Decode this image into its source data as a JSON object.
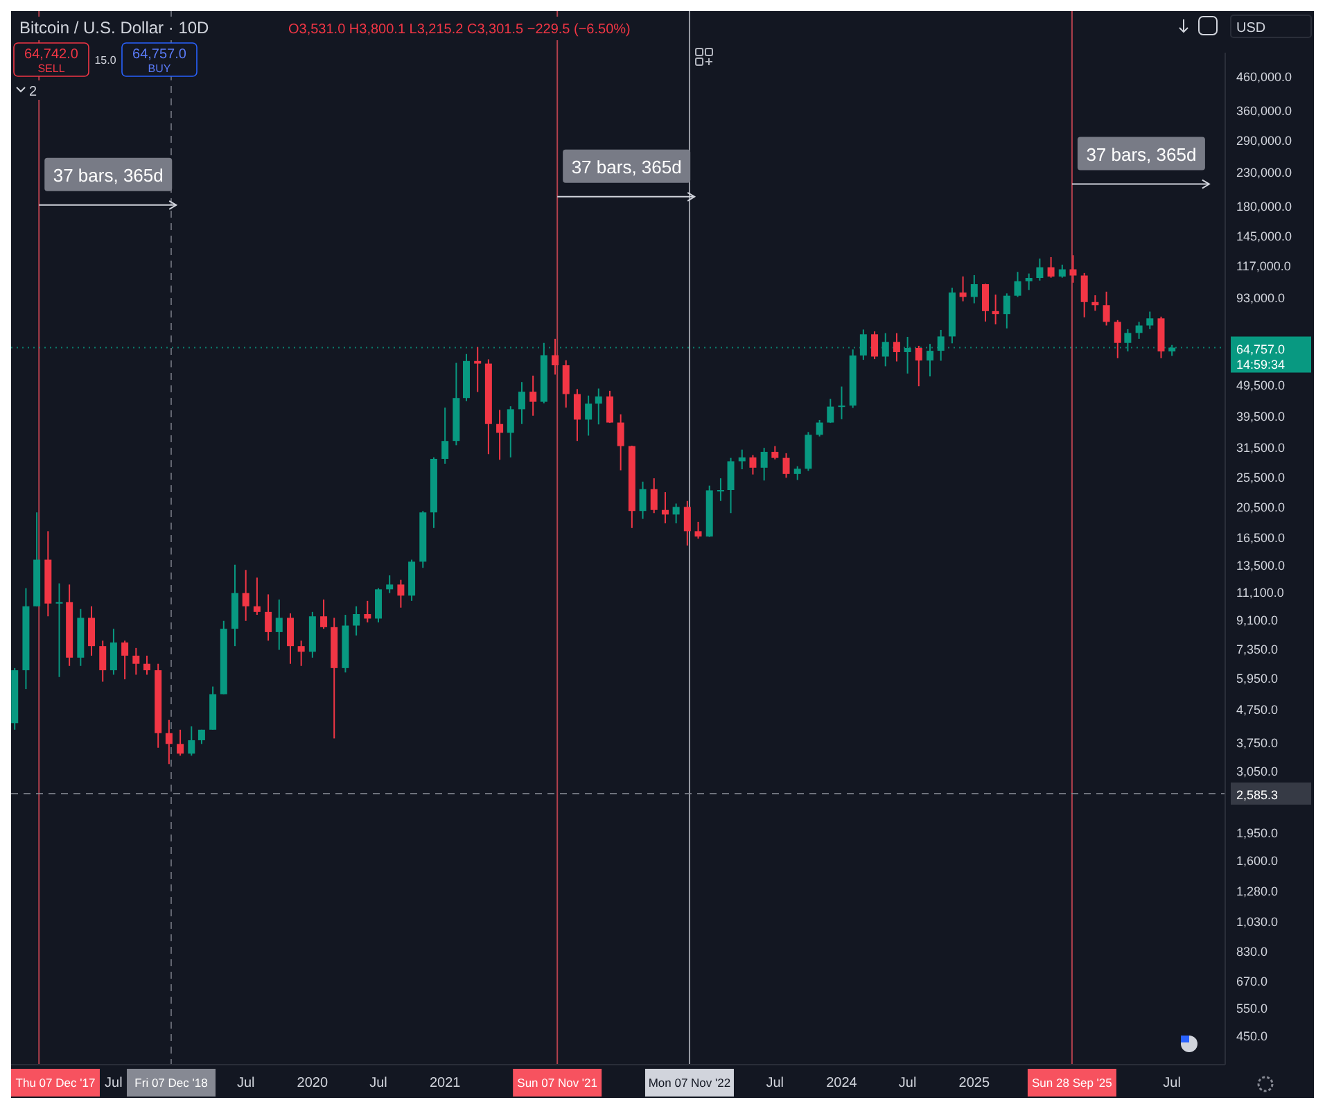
{
  "chart_data": {
    "type": "candlestick",
    "title": "Bitcoin / U.S. Dollar · 10D",
    "subtitle": "O3,531.0 H3,800.1 L3,215.2 C3,301.5 −229.5 (−6.50%)",
    "x": [
      "2017-10",
      "2017-11",
      "2017-12",
      "2018-01",
      "2018-02",
      "2018-03",
      "2018-04",
      "2018-05",
      "2018-06",
      "2018-07",
      "2018-08",
      "2018-09",
      "2018-10",
      "2018-11",
      "2018-12",
      "2019-01",
      "2019-02",
      "2019-03",
      "2019-04",
      "2019-05",
      "2019-06",
      "2019-07",
      "2019-08",
      "2019-09",
      "2019-10",
      "2019-11",
      "2019-12",
      "2020-01",
      "2020-02",
      "2020-03",
      "2020-04",
      "2020-05",
      "2020-06",
      "2020-07",
      "2020-08",
      "2020-09",
      "2020-10",
      "2020-11",
      "2020-12",
      "2021-01",
      "2021-02",
      "2021-03",
      "2021-04",
      "2021-05",
      "2021-06",
      "2021-07",
      "2021-08",
      "2021-09",
      "2021-10",
      "2021-11",
      "2021-12",
      "2022-01",
      "2022-02",
      "2022-03",
      "2022-04",
      "2022-05",
      "2022-06",
      "2022-07",
      "2022-08",
      "2022-09",
      "2022-10",
      "2022-11",
      "2022-12",
      "2023-01",
      "2023-02",
      "2023-03",
      "2023-04",
      "2023-05",
      "2023-06",
      "2023-07",
      "2023-08",
      "2023-09",
      "2023-10",
      "2023-11",
      "2023-12",
      "2024-01",
      "2024-02",
      "2024-03",
      "2024-04",
      "2024-05",
      "2024-06",
      "2024-07",
      "2024-08",
      "2024-09",
      "2024-10",
      "2024-11",
      "2024-12",
      "2025-01",
      "2025-02",
      "2025-03",
      "2025-04",
      "2025-05",
      "2025-06",
      "2025-07",
      "2025-08",
      "2025-09",
      "2025-10",
      "2025-11",
      "2025-12",
      "2026-01",
      "2026-02",
      "2026-03",
      "2026-04",
      "2026-05",
      "2026-06",
      "2026-07"
    ],
    "ohlc": [
      [
        4300,
        6400,
        4100,
        6300
      ],
      [
        6300,
        11400,
        5500,
        10000
      ],
      [
        10000,
        19700,
        10000,
        14000
      ],
      [
        14000,
        17200,
        9300,
        10200
      ],
      [
        10200,
        11800,
        6000,
        10300
      ],
      [
        10300,
        11700,
        6500,
        6900
      ],
      [
        6900,
        9800,
        6500,
        9200
      ],
      [
        9200,
        10000,
        7000,
        7500
      ],
      [
        7500,
        7800,
        5800,
        6300
      ],
      [
        6300,
        8500,
        6100,
        7700
      ],
      [
        7700,
        7800,
        5900,
        7000
      ],
      [
        7000,
        7400,
        6100,
        6600
      ],
      [
        6600,
        7000,
        6100,
        6300
      ],
      [
        6300,
        6600,
        3600,
        4000
      ],
      [
        4000,
        4400,
        3200,
        3700
      ],
      [
        3700,
        4100,
        3400,
        3450
      ],
      [
        3450,
        4200,
        3400,
        3800
      ],
      [
        3800,
        4100,
        3700,
        4100
      ],
      [
        4100,
        5600,
        4100,
        5300
      ],
      [
        5300,
        9000,
        5300,
        8500
      ],
      [
        8500,
        13500,
        7500,
        11000
      ],
      [
        11000,
        13000,
        9000,
        10000
      ],
      [
        10000,
        12300,
        9400,
        9600
      ],
      [
        9600,
        10900,
        7800,
        8300
      ],
      [
        8300,
        10500,
        7300,
        9200
      ],
      [
        9200,
        9500,
        6600,
        7500
      ],
      [
        7500,
        7800,
        6500,
        7200
      ],
      [
        7200,
        9600,
        6900,
        9300
      ],
      [
        9300,
        10500,
        8500,
        8600
      ],
      [
        8600,
        9200,
        3850,
        6400
      ],
      [
        6400,
        9400,
        6200,
        8700
      ],
      [
        8700,
        10000,
        8100,
        9450
      ],
      [
        9450,
        10400,
        8900,
        9150
      ],
      [
        9150,
        11400,
        8900,
        11300
      ],
      [
        11300,
        12500,
        11000,
        11700
      ],
      [
        11700,
        12100,
        9900,
        10800
      ],
      [
        10800,
        14000,
        10400,
        13800
      ],
      [
        13800,
        19900,
        13200,
        19700
      ],
      [
        19700,
        29300,
        17600,
        29000
      ],
      [
        29000,
        42000,
        28000,
        33000
      ],
      [
        33000,
        58000,
        32000,
        45000
      ],
      [
        45000,
        61800,
        44000,
        58800
      ],
      [
        58800,
        65000,
        47000,
        57700
      ],
      [
        57700,
        59500,
        30000,
        37300
      ],
      [
        37300,
        41300,
        28800,
        35000
      ],
      [
        35000,
        42400,
        29300,
        41500
      ],
      [
        41500,
        50500,
        37300,
        47100
      ],
      [
        47100,
        52900,
        39600,
        43800
      ],
      [
        43800,
        67000,
        43300,
        61300
      ],
      [
        61300,
        69000,
        53300,
        57000
      ],
      [
        57000,
        59100,
        42000,
        46300
      ],
      [
        46300,
        48000,
        33000,
        38500
      ],
      [
        38500,
        45800,
        34300,
        43200
      ],
      [
        43200,
        48200,
        37200,
        45500
      ],
      [
        45500,
        47400,
        37600,
        37700
      ],
      [
        37700,
        40000,
        26700,
        31800
      ],
      [
        31800,
        31900,
        17600,
        19900
      ],
      [
        19900,
        24600,
        18800,
        23300
      ],
      [
        23300,
        25200,
        19600,
        20050
      ],
      [
        20050,
        22800,
        18200,
        19400
      ],
      [
        19400,
        21000,
        18200,
        20500
      ],
      [
        20500,
        21400,
        15500,
        17200
      ],
      [
        17200,
        18400,
        16300,
        16550
      ],
      [
        16550,
        23900,
        16500,
        23100
      ],
      [
        23100,
        25200,
        21400,
        23150
      ],
      [
        23150,
        29200,
        19600,
        28500
      ],
      [
        28500,
        31000,
        26900,
        29300
      ],
      [
        29300,
        29800,
        25900,
        27200
      ],
      [
        27200,
        31400,
        24800,
        30500
      ],
      [
        30500,
        31800,
        28900,
        29200
      ],
      [
        29200,
        30200,
        25300,
        26000
      ],
      [
        26000,
        27500,
        24900,
        27000
      ],
      [
        27000,
        35200,
        26600,
        34500
      ],
      [
        34500,
        38400,
        34100,
        37700
      ],
      [
        37700,
        44700,
        37600,
        42300
      ],
      [
        42300,
        48900,
        38600,
        42600
      ],
      [
        42600,
        63900,
        41900,
        61200
      ],
      [
        61200,
        73800,
        59300,
        71300
      ],
      [
        71300,
        72800,
        59600,
        60700
      ],
      [
        60700,
        71900,
        56600,
        67500
      ],
      [
        67500,
        71900,
        58600,
        62700
      ],
      [
        62700,
        70000,
        53700,
        64600
      ],
      [
        64600,
        65600,
        49000,
        59000
      ],
      [
        59000,
        66500,
        52600,
        63300
      ],
      [
        63300,
        73600,
        58900,
        70200
      ],
      [
        70200,
        99800,
        66800,
        96400
      ],
      [
        96400,
        108300,
        90500,
        93400
      ],
      [
        93400,
        109300,
        89200,
        102400
      ],
      [
        102400,
        102700,
        78200,
        84300
      ],
      [
        84300,
        95000,
        76600,
        82500
      ],
      [
        82500,
        95800,
        74400,
        94200
      ],
      [
        94200,
        111900,
        93400,
        104600
      ],
      [
        104600,
        110600,
        98200,
        107100
      ],
      [
        107100,
        123200,
        105100,
        115700
      ],
      [
        115700,
        124500,
        107300,
        108200
      ],
      [
        108200,
        117900,
        107300,
        114000
      ],
      [
        114000,
        126200,
        103500,
        109000
      ],
      [
        109000,
        111000,
        80600,
        90000
      ],
      [
        90000,
        94500,
        84500,
        88000
      ],
      [
        88000,
        97000,
        76000,
        78000
      ],
      [
        78000,
        79000,
        60000,
        67000
      ],
      [
        67000,
        74000,
        63000,
        72000
      ],
      [
        72000,
        78000,
        69000,
        76000
      ],
      [
        76000,
        84000,
        74000,
        80000
      ],
      [
        80000,
        81000,
        60000,
        63000
      ],
      [
        63000,
        66000,
        61000,
        64757
      ]
    ],
    "log": "y",
    "grid": false,
    "xlim": [
      "2017-09-21",
      "2026-11-25"
    ],
    "xticks": [
      {
        "value": "2018-07",
        "label": "Jul"
      },
      {
        "value": "2019-07",
        "label": "Jul"
      },
      {
        "value": "2020",
        "label": "2020"
      },
      {
        "value": "2020-07",
        "label": "Jul"
      },
      {
        "value": "2021",
        "label": "2021"
      },
      {
        "value": "2023-07",
        "label": "Jul"
      },
      {
        "value": "2024",
        "label": "2024"
      },
      {
        "value": "2024-07",
        "label": "Jul"
      },
      {
        "value": "2025",
        "label": "2025"
      },
      {
        "value": "2026-07",
        "label": "Jul"
      }
    ],
    "ylim": [
      365,
      545000
    ],
    "yticks": [
      {
        "value": 460000,
        "label": "460,000.0"
      },
      {
        "value": 360000,
        "label": "360,000.0"
      },
      {
        "value": 290000,
        "label": "290,000.0"
      },
      {
        "value": 230000,
        "label": "230,000.0"
      },
      {
        "value": 180000,
        "label": "180,000.0"
      },
      {
        "value": 145000,
        "label": "145,000.0"
      },
      {
        "value": 117000,
        "label": "117,000.0"
      },
      {
        "value": 93000,
        "label": "93,000.0"
      },
      {
        "value": 49500,
        "label": "49,500.0"
      },
      {
        "value": 39500,
        "label": "39,500.0"
      },
      {
        "value": 31500,
        "label": "31,500.0"
      },
      {
        "value": 25500,
        "label": "25,500.0"
      },
      {
        "value": 20500,
        "label": "20,500.0"
      },
      {
        "value": 16500,
        "label": "16,500.0"
      },
      {
        "value": 13500,
        "label": "13,500.0"
      },
      {
        "value": 11100,
        "label": "11,100.0"
      },
      {
        "value": 9100,
        "label": "9,100.0"
      },
      {
        "value": 7350,
        "label": "7,350.0"
      },
      {
        "value": 5950,
        "label": "5,950.0"
      },
      {
        "value": 4750,
        "label": "4,750.0"
      },
      {
        "value": 3750,
        "label": "3,750.0"
      },
      {
        "value": 3050,
        "label": "3,050.0"
      },
      {
        "value": 1950,
        "label": "1,950.0"
      },
      {
        "value": 1600,
        "label": "1,600.0"
      },
      {
        "value": 1280,
        "label": "1,280.0"
      },
      {
        "value": 1030,
        "label": "1,030.0"
      },
      {
        "value": 830,
        "label": "830.0"
      },
      {
        "value": 670,
        "label": "670.0"
      },
      {
        "value": 550,
        "label": "550.0"
      },
      {
        "value": 450,
        "label": "450.0"
      }
    ],
    "ref_lines": [
      {
        "axis": "x",
        "value": "2017-12-07",
        "label": "Thu 07 Dec '17",
        "color": "#f7525f",
        "line_style": "solid"
      },
      {
        "axis": "x",
        "value": "2018-12-07",
        "label": "Fri 07 Dec '18",
        "color": "#868993",
        "line_style": "dashed"
      },
      {
        "axis": "x",
        "value": "2021-11-07",
        "label": "Sun 07 Nov '21",
        "color": "#f7525f",
        "line_style": "solid"
      },
      {
        "axis": "x",
        "value": "2022-11-07",
        "label": "Mon 07 Nov '22",
        "color": "#d1d4dc",
        "line_style": "solid"
      },
      {
        "axis": "x",
        "value": "2025-09-28",
        "label": "Sun 28 Sep '25",
        "color": "#f7525f",
        "line_style": "solid"
      },
      {
        "axis": "y",
        "value": 64757,
        "label": "64,757.0",
        "color": "#089981",
        "line_style": "dotted"
      },
      {
        "axis": "y",
        "value": 2585.3,
        "label": "2,585.3",
        "color": "#868993",
        "line_style": "dashed"
      }
    ],
    "annotations": [
      {
        "text": "37 bars, 365d",
        "x": "2017-12-07",
        "y": 226000
      },
      {
        "text": "37 bars, 365d",
        "x": "2021-11-07",
        "y": 240000
      },
      {
        "text": "37 bars, 365d",
        "x": "2025-09-28",
        "y": 263000
      },
      "64,742.0",
      "SELL",
      "15.0",
      "64,757.0",
      "BUY",
      "2",
      "USD",
      "14:59:34"
    ]
  }
}
